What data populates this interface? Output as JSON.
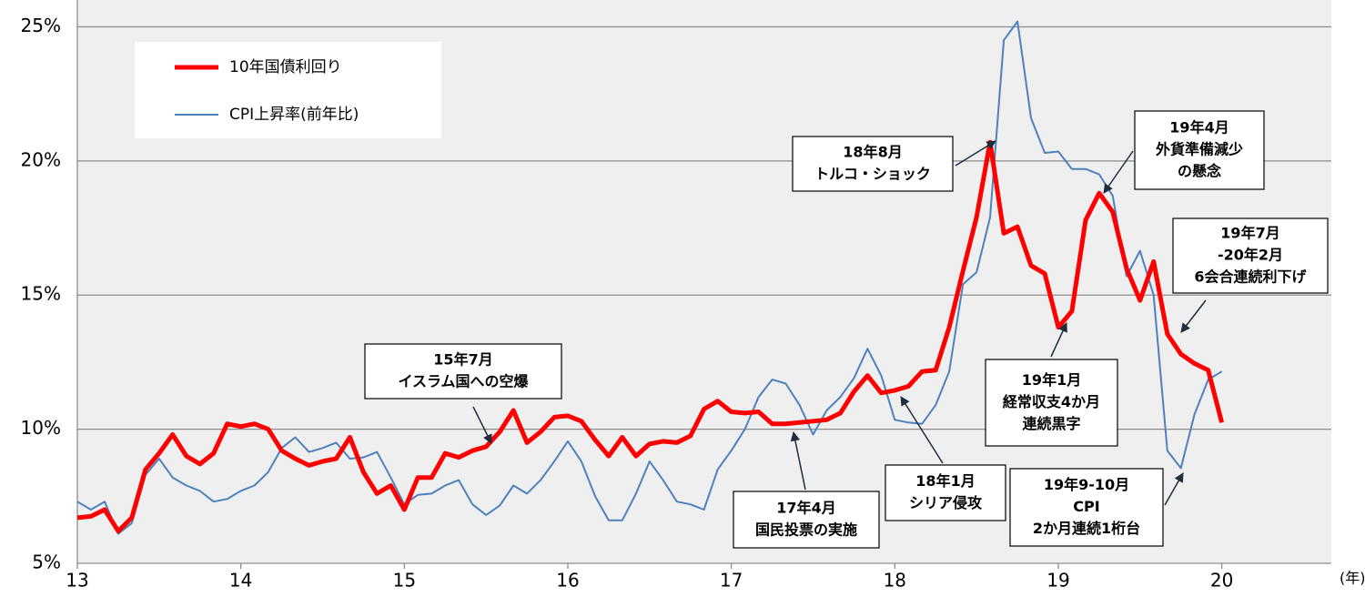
{
  "chart_data": {
    "type": "line",
    "x_label": "(年)",
    "x": [
      13,
      13.083,
      13.167,
      13.25,
      13.333,
      13.417,
      13.5,
      13.583,
      13.667,
      13.75,
      13.833,
      13.917,
      14,
      14.083,
      14.167,
      14.25,
      14.333,
      14.417,
      14.5,
      14.583,
      14.667,
      14.75,
      14.833,
      14.917,
      15,
      15.083,
      15.167,
      15.25,
      15.333,
      15.417,
      15.5,
      15.583,
      15.667,
      15.75,
      15.833,
      15.917,
      16,
      16.083,
      16.167,
      16.25,
      16.333,
      16.417,
      16.5,
      16.583,
      16.667,
      16.75,
      16.833,
      16.917,
      17,
      17.083,
      17.167,
      17.25,
      17.333,
      17.417,
      17.5,
      17.583,
      17.667,
      17.75,
      17.833,
      17.917,
      18,
      18.083,
      18.167,
      18.25,
      18.333,
      18.417,
      18.5,
      18.583,
      18.667,
      18.75,
      18.833,
      18.917,
      19,
      19.083,
      19.167,
      19.25,
      19.333,
      19.417,
      19.5,
      19.583,
      19.667,
      19.75,
      19.833,
      19.917,
      20
    ],
    "series": [
      {
        "name": "10年国債利回り",
        "color": "#ff0000",
        "width": 5,
        "values": [
          6.7,
          6.75,
          7.0,
          6.2,
          6.7,
          8.5,
          9.1,
          9.8,
          9.0,
          8.7,
          9.1,
          10.2,
          10.1,
          10.2,
          10.0,
          9.2,
          8.9,
          8.65,
          8.8,
          8.9,
          9.7,
          8.4,
          7.6,
          7.9,
          7.0,
          8.2,
          8.2,
          9.1,
          8.95,
          9.2,
          9.35,
          9.9,
          10.7,
          9.5,
          9.9,
          10.45,
          10.5,
          10.3,
          9.6,
          9.0,
          9.7,
          9.0,
          9.45,
          9.55,
          9.5,
          9.75,
          10.75,
          11.05,
          10.65,
          10.6,
          10.65,
          10.2,
          10.2,
          10.25,
          10.3,
          10.35,
          10.6,
          11.4,
          12.0,
          11.35,
          11.45,
          11.6,
          12.15,
          12.2,
          13.8,
          15.9,
          17.9,
          20.7,
          17.3,
          17.55,
          16.1,
          15.8,
          13.8,
          14.4,
          17.8,
          18.8,
          18.1,
          16.0,
          14.8,
          16.25,
          13.55,
          12.8,
          12.45,
          12.2,
          10.25
        ]
      },
      {
        "name": "CPI上昇率(前年比)",
        "color": "#4f81bd",
        "width": 2,
        "values": [
          7.3,
          7.0,
          7.3,
          6.1,
          6.5,
          8.3,
          8.9,
          8.2,
          7.9,
          7.7,
          7.3,
          7.4,
          7.7,
          7.9,
          8.4,
          9.3,
          9.7,
          9.15,
          9.3,
          9.5,
          8.9,
          8.95,
          9.15,
          8.2,
          7.2,
          7.55,
          7.6,
          7.9,
          8.1,
          7.2,
          6.8,
          7.15,
          7.9,
          7.6,
          8.1,
          8.8,
          9.55,
          8.8,
          7.5,
          6.6,
          6.6,
          7.6,
          8.8,
          8.1,
          7.3,
          7.2,
          7.0,
          8.5,
          9.2,
          10.0,
          11.2,
          11.85,
          11.7,
          10.9,
          9.8,
          10.7,
          11.2,
          11.9,
          13.0,
          12.0,
          10.35,
          10.25,
          10.2,
          10.9,
          12.15,
          15.4,
          15.85,
          17.9,
          24.5,
          25.2,
          21.6,
          20.3,
          20.35,
          19.7,
          19.7,
          19.5,
          18.7,
          15.7,
          16.65,
          15.0,
          9.2,
          8.55,
          10.55,
          11.85,
          12.15
        ]
      }
    ],
    "xlim": [
      13,
      20.67
    ],
    "xticks": [
      13,
      14,
      15,
      16,
      17,
      18,
      19,
      20
    ],
    "ylim": [
      5,
      26
    ],
    "yticks": [
      {
        "value": 5,
        "label": "5%"
      },
      {
        "value": 10,
        "label": "10%"
      },
      {
        "value": 15,
        "label": "15%"
      },
      {
        "value": 20,
        "label": "20%"
      },
      {
        "value": 25,
        "label": "25%"
      }
    ],
    "grid": true,
    "legend": "upper left",
    "annotations": [
      {
        "text": [
          "15年7月",
          "イスラム国への空爆"
        ]
      },
      {
        "text": [
          "17年4月",
          "国民投票の実施"
        ]
      },
      {
        "text": [
          "18年1月",
          "シリア侵攻"
        ]
      },
      {
        "text": [
          "18年8月",
          "トルコ・ショック"
        ]
      },
      {
        "text": [
          "19年1月",
          "経常収支4か月",
          "連続黒字"
        ]
      },
      {
        "text": [
          "19年4月",
          "外貨準備減少",
          "の懸念"
        ]
      },
      {
        "text": [
          "19年7月",
          "-20年2月",
          "6会合連続利下げ"
        ]
      },
      {
        "text": [
          "19年9-10月",
          "CPI",
          "2か月連続1桁台"
        ]
      }
    ]
  }
}
